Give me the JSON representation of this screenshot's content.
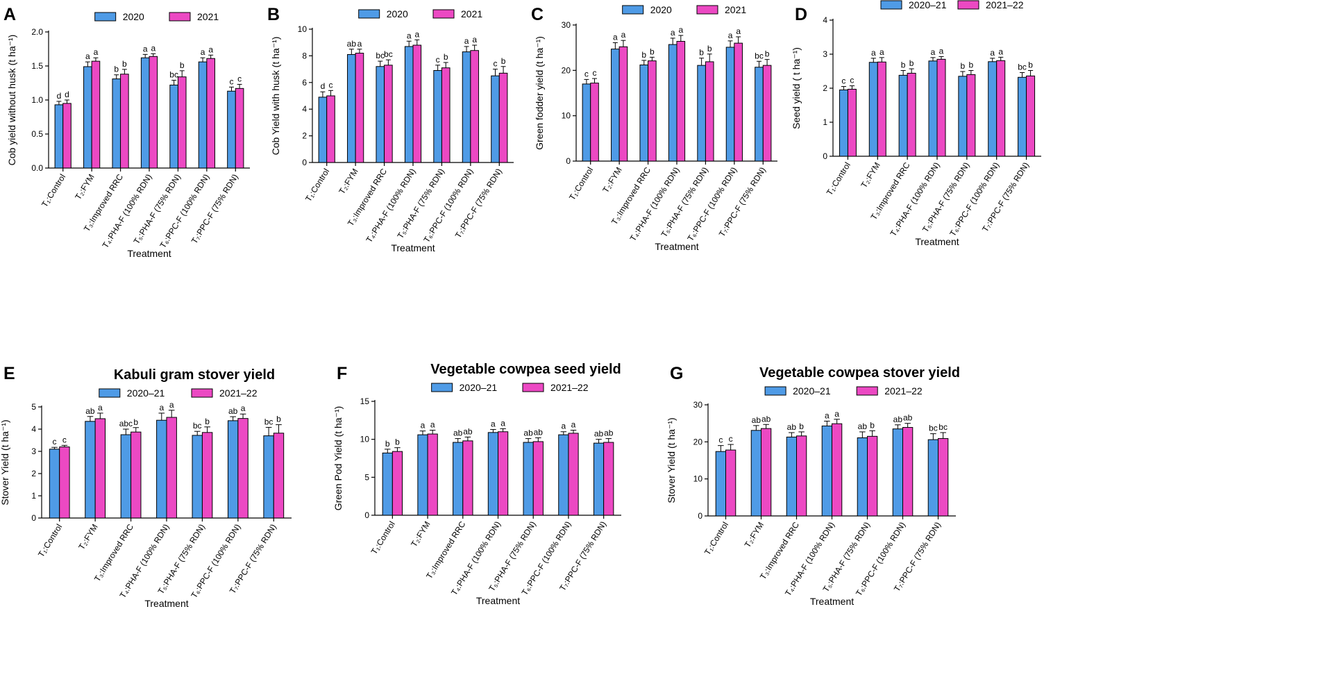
{
  "chart_data": [
    {
      "id": "A",
      "letter": "A",
      "type": "bar",
      "title": "",
      "xlabel": "Treatment",
      "ylabel": "Cob yield without husk (t ha⁻¹)",
      "ylim": [
        0,
        2.0
      ],
      "yticks": [
        0.0,
        0.5,
        1.0,
        1.5,
        2.0
      ],
      "tick_decimals": 1,
      "categories": [
        "T₁:Control",
        "T₂:FYM",
        "T₃:Improved RRC",
        "T₄:PHA-F (100% RDN)",
        "T₅:PHA-F (75% RDN)",
        "T₆:PPC-F (100% RDN)",
        "T₇:PPC-F (75% RDN)"
      ],
      "series": [
        {
          "name": "2020",
          "color": "#4f9be6",
          "values": [
            0.93,
            1.49,
            1.31,
            1.62,
            1.22,
            1.56,
            1.13
          ],
          "errors": [
            0.05,
            0.07,
            0.06,
            0.05,
            0.07,
            0.06,
            0.06
          ],
          "letters": [
            "d",
            "a",
            "b",
            "a",
            "bc",
            "a",
            "c"
          ]
        },
        {
          "name": "2021",
          "color": "#ec49c3",
          "values": [
            0.95,
            1.57,
            1.38,
            1.64,
            1.34,
            1.61,
            1.17
          ],
          "errors": [
            0.05,
            0.05,
            0.07,
            0.04,
            0.09,
            0.05,
            0.06
          ],
          "letters": [
            "d",
            "a",
            "b",
            "a",
            "b",
            "a",
            "c"
          ]
        }
      ]
    },
    {
      "id": "B",
      "letter": "B",
      "type": "bar",
      "title": "",
      "xlabel": "Treatment",
      "ylabel": "Cob Yield with husk (t ha⁻¹)",
      "ylim": [
        0,
        10
      ],
      "yticks": [
        0,
        2,
        4,
        6,
        8,
        10
      ],
      "tick_decimals": 0,
      "categories": [
        "T₁:Control",
        "T₂:FYM",
        "T₃:Improved RRC",
        "T₄:PHA-F (100% RDN)",
        "T₅:PHA-F (75% RDN)",
        "T₆:PPC-F (100% RDN)",
        "T₇:PPC-F (75% RDN)"
      ],
      "series": [
        {
          "name": "2020",
          "color": "#4f9be6",
          "values": [
            4.9,
            8.1,
            7.2,
            8.7,
            6.9,
            8.3,
            6.5
          ],
          "errors": [
            0.4,
            0.4,
            0.4,
            0.4,
            0.4,
            0.4,
            0.5
          ],
          "letters": [
            "d",
            "ab",
            "bc",
            "a",
            "c",
            "a",
            "c"
          ]
        },
        {
          "name": "2021",
          "color": "#ec49c3",
          "values": [
            5.0,
            8.2,
            7.3,
            8.8,
            7.1,
            8.4,
            6.7
          ],
          "errors": [
            0.4,
            0.3,
            0.4,
            0.4,
            0.4,
            0.4,
            0.5
          ],
          "letters": [
            "c",
            "a",
            "bc",
            "a",
            "b",
            "a",
            "b"
          ]
        }
      ]
    },
    {
      "id": "C",
      "letter": "C",
      "type": "bar",
      "title": "",
      "xlabel": "Treatment",
      "ylabel": "Green fodder yield (t ha⁻¹)",
      "ylim": [
        0,
        30
      ],
      "yticks": [
        0,
        10,
        20,
        30
      ],
      "tick_decimals": 0,
      "categories": [
        "T₁:Control",
        "T₂:FYM",
        "T₃:Improved RRC",
        "T₄:PHA-F (100% RDN)",
        "T₅:PHA-F (75% RDN)",
        "T₆:PPC-F (100% RDN)",
        "T₇:PPC-F (75% RDN)"
      ],
      "series": [
        {
          "name": "2020",
          "color": "#4f9be6",
          "values": [
            17.0,
            24.7,
            21.2,
            25.7,
            21.1,
            25.1,
            20.7
          ],
          "errors": [
            1.0,
            1.4,
            1.0,
            1.4,
            1.6,
            1.4,
            1.3
          ],
          "letters": [
            "c",
            "a",
            "b",
            "a",
            "b",
            "a",
            "bc"
          ]
        },
        {
          "name": "2021",
          "color": "#ec49c3",
          "values": [
            17.2,
            25.2,
            22.1,
            26.4,
            21.9,
            26.0,
            21.1
          ],
          "errors": [
            1.0,
            1.4,
            0.8,
            1.3,
            1.7,
            1.4,
            1.3
          ],
          "letters": [
            "c",
            "a",
            "b",
            "a",
            "b",
            "a",
            "b"
          ]
        }
      ]
    },
    {
      "id": "D",
      "letter": "D",
      "type": "bar",
      "title": "",
      "xlabel": "Treatment",
      "ylabel": "Seed yield ( t ha⁻¹)",
      "ylim": [
        0,
        4
      ],
      "yticks": [
        0,
        1,
        2,
        3,
        4
      ],
      "tick_decimals": 0,
      "categories": [
        "T₁:Control",
        "T₂:FYM",
        "T₃:Improved RRC",
        "T₄:PHA-F (100% RDN)",
        "T₅:PHA-F (75% RDN)",
        "T₆:PPC-F (100% RDN)",
        "T₇:PPC-F (75% RDN)"
      ],
      "series": [
        {
          "name": "2020–21",
          "color": "#4f9be6",
          "values": [
            1.95,
            2.76,
            2.38,
            2.8,
            2.35,
            2.78,
            2.32
          ],
          "errors": [
            0.1,
            0.12,
            0.14,
            0.1,
            0.14,
            0.1,
            0.14
          ],
          "letters": [
            "c",
            "a",
            "b",
            "a",
            "b",
            "a",
            "bc"
          ]
        },
        {
          "name": "2021–22",
          "color": "#ec49c3",
          "values": [
            1.97,
            2.77,
            2.44,
            2.85,
            2.4,
            2.81,
            2.36
          ],
          "errors": [
            0.1,
            0.13,
            0.13,
            0.08,
            0.12,
            0.1,
            0.16
          ],
          "letters": [
            "c",
            "a",
            "b",
            "a",
            "b",
            "a",
            "b"
          ]
        }
      ]
    },
    {
      "id": "E",
      "letter": "E",
      "type": "bar",
      "title": "Kabuli gram stover yield",
      "xlabel": "Treatment",
      "ylabel": "Stover Yield (t ha⁻¹)",
      "ylim": [
        0,
        5
      ],
      "yticks": [
        0,
        1,
        2,
        3,
        4,
        5
      ],
      "tick_decimals": 0,
      "categories": [
        "T₁:Control",
        "T₂:FYM",
        "T₃:Improved RRC",
        "T₄:PHA-F (100% RDN)",
        "T₅:PHA-F (75% RDN)",
        "T₆:PPC-F (100% RDN)",
        "T₇:PPC-F (75% RDN)"
      ],
      "series": [
        {
          "name": "2020–21",
          "color": "#4f9be6",
          "values": [
            3.1,
            4.35,
            3.75,
            4.4,
            3.72,
            4.38,
            3.7
          ],
          "errors": [
            0.08,
            0.22,
            0.25,
            0.32,
            0.18,
            0.18,
            0.38
          ],
          "letters": [
            "c",
            "ab",
            "abc",
            "a",
            "bc",
            "ab",
            "bc"
          ]
        },
        {
          "name": "2021–22",
          "color": "#ec49c3",
          "values": [
            3.2,
            4.47,
            3.87,
            4.53,
            3.85,
            4.48,
            3.82
          ],
          "errors": [
            0.07,
            0.25,
            0.2,
            0.32,
            0.25,
            0.2,
            0.38
          ],
          "letters": [
            "c",
            "a",
            "b",
            "a",
            "b",
            "a",
            "b"
          ]
        }
      ]
    },
    {
      "id": "F",
      "letter": "F",
      "type": "bar",
      "title": "Vegetable cowpea seed yield",
      "xlabel": "Treatment",
      "ylabel": "Green Pod Yield (t ha⁻¹)",
      "ylim": [
        0,
        15
      ],
      "yticks": [
        0,
        5,
        10,
        15
      ],
      "tick_decimals": 0,
      "categories": [
        "T₁:Control",
        "T₂:FYM",
        "T₃:Improved RRC",
        "T₄:PHA-F (100% RDN)",
        "T₅:PHA-F (75% RDN)",
        "T₆:PPC-F (100% RDN)",
        "T₇:PPC-F (75% RDN)"
      ],
      "series": [
        {
          "name": "2020–21",
          "color": "#4f9be6",
          "values": [
            8.2,
            10.6,
            9.6,
            10.9,
            9.6,
            10.6,
            9.5
          ],
          "errors": [
            0.5,
            0.5,
            0.5,
            0.4,
            0.5,
            0.4,
            0.5
          ],
          "letters": [
            "b",
            "a",
            "ab",
            "a",
            "ab",
            "a",
            "ab"
          ]
        },
        {
          "name": "2021–22",
          "color": "#ec49c3",
          "values": [
            8.4,
            10.7,
            9.8,
            11.0,
            9.7,
            10.8,
            9.6
          ],
          "errors": [
            0.5,
            0.5,
            0.5,
            0.4,
            0.5,
            0.4,
            0.5
          ],
          "letters": [
            "b",
            "a",
            "ab",
            "a",
            "ab",
            "a",
            "ab"
          ]
        }
      ]
    },
    {
      "id": "G",
      "letter": "G",
      "type": "bar",
      "title": "Vegetable cowpea stover yield",
      "xlabel": "Treatment",
      "ylabel": "Stover Yield (t ha⁻¹)",
      "ylim": [
        0,
        30
      ],
      "yticks": [
        0,
        10,
        20,
        30
      ],
      "tick_decimals": 0,
      "categories": [
        "T₁:Control",
        "T₂:FYM",
        "T₃:Improved RRC",
        "T₄:PHA-F (100% RDN)",
        "T₅:PHA-F (75% RDN)",
        "T₆:PPC-F (100% RDN)",
        "T₇:PPC-F (75% RDN)"
      ],
      "series": [
        {
          "name": "2020–21",
          "color": "#4f9be6",
          "values": [
            17.4,
            23.1,
            21.3,
            24.3,
            21.1,
            23.5,
            20.6
          ],
          "errors": [
            1.6,
            1.3,
            1.2,
            1.3,
            1.6,
            1.1,
            1.6
          ],
          "letters": [
            "c",
            "ab",
            "ab",
            "a",
            "ab",
            "ab",
            "bc"
          ]
        },
        {
          "name": "2021–22",
          "color": "#ec49c3",
          "values": [
            17.8,
            23.6,
            21.6,
            24.9,
            21.5,
            23.9,
            20.9
          ],
          "errors": [
            1.5,
            1.1,
            1.1,
            1.2,
            1.5,
            1.1,
            1.6
          ],
          "letters": [
            "c",
            "ab",
            "b",
            "a",
            "b",
            "ab",
            "bc"
          ]
        }
      ]
    }
  ]
}
